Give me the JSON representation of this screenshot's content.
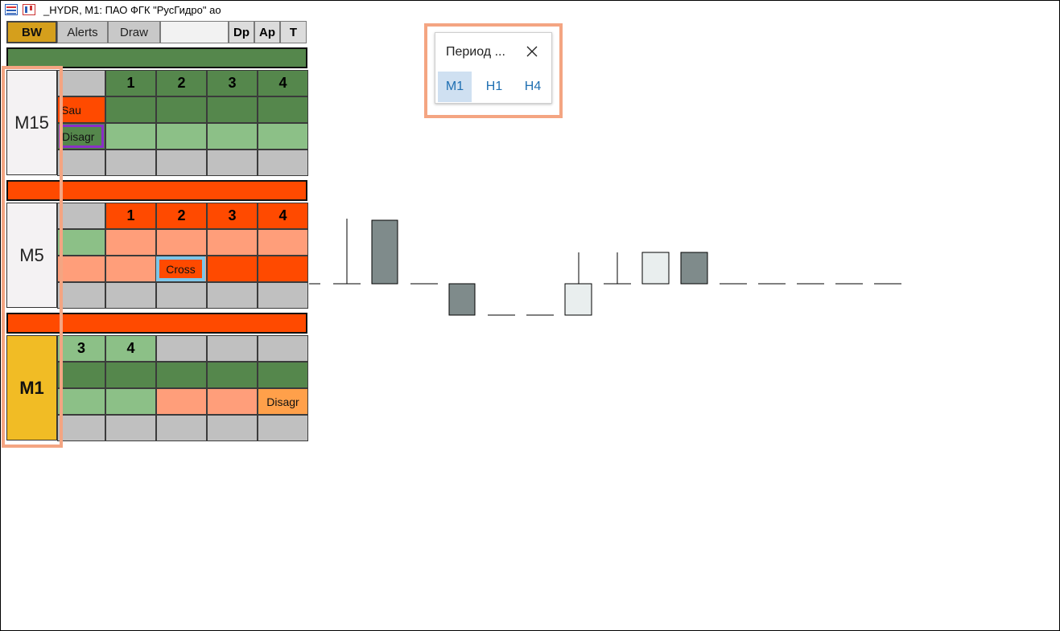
{
  "window": {
    "title": "_HYDR, M1:  ПАО ФГК \"РусГидро\" ао",
    "icons": [
      "chart-list-icon",
      "chart-window-icon"
    ]
  },
  "toolbar": {
    "bw": "BW",
    "alerts": "Alerts",
    "draw": "Draw",
    "dp": "Dp",
    "ap": "Ap",
    "t": "T"
  },
  "panels": {
    "m15": {
      "label": "M15",
      "header": [
        "1",
        "2",
        "3",
        "4"
      ],
      "labels": {
        "sau": "Sau",
        "disagr": "Disagr"
      }
    },
    "m5": {
      "label": "M5",
      "header": [
        "1",
        "2",
        "3",
        "4"
      ],
      "labels": {
        "cross": "Cross"
      }
    },
    "m1": {
      "label": "M1",
      "header": [
        "3",
        "4"
      ],
      "labels": {
        "disagr": "Disagr"
      }
    }
  },
  "period_popup": {
    "title": "Период ...",
    "options": [
      "M1",
      "H1",
      "H4"
    ],
    "selected": "M1"
  },
  "colors": {
    "dark_green": "#55874c",
    "light_green": "#8cc087",
    "orange": "#ff4a00",
    "salmon": "#ff9e7a",
    "gray": "#c0c0c0",
    "gold": "#f1bc25",
    "candle_dark": "#7f8b8b",
    "candle_light": "#e9eeee"
  }
}
